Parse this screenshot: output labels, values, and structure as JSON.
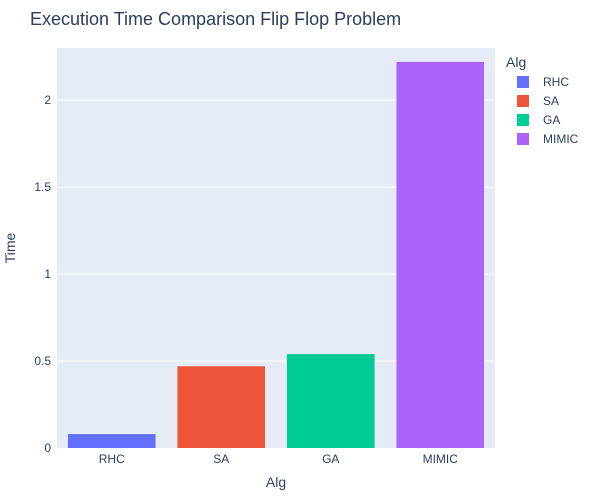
{
  "chart_data": {
    "type": "bar",
    "title": "Execution Time Comparison Flip Flop Problem",
    "xlabel": "Alg",
    "ylabel": "Time",
    "categories": [
      "RHC",
      "SA",
      "GA",
      "MIMIC"
    ],
    "values": [
      0.08,
      0.47,
      0.54,
      2.22
    ],
    "colors": [
      "#636efa",
      "#ef553b",
      "#00cc96",
      "#ab63fa"
    ],
    "ylim": [
      0,
      2.3
    ],
    "yticks": [
      0,
      0.5,
      1,
      1.5,
      2
    ],
    "ytick_labels": [
      "0",
      "0.5",
      "1",
      "1.5",
      "2"
    ],
    "grid": true,
    "plot_background": "#e5ecf6",
    "legend": {
      "title": "Alg",
      "placement": "top-right",
      "entries": [
        "RHC",
        "SA",
        "GA",
        "MIMIC"
      ]
    }
  }
}
